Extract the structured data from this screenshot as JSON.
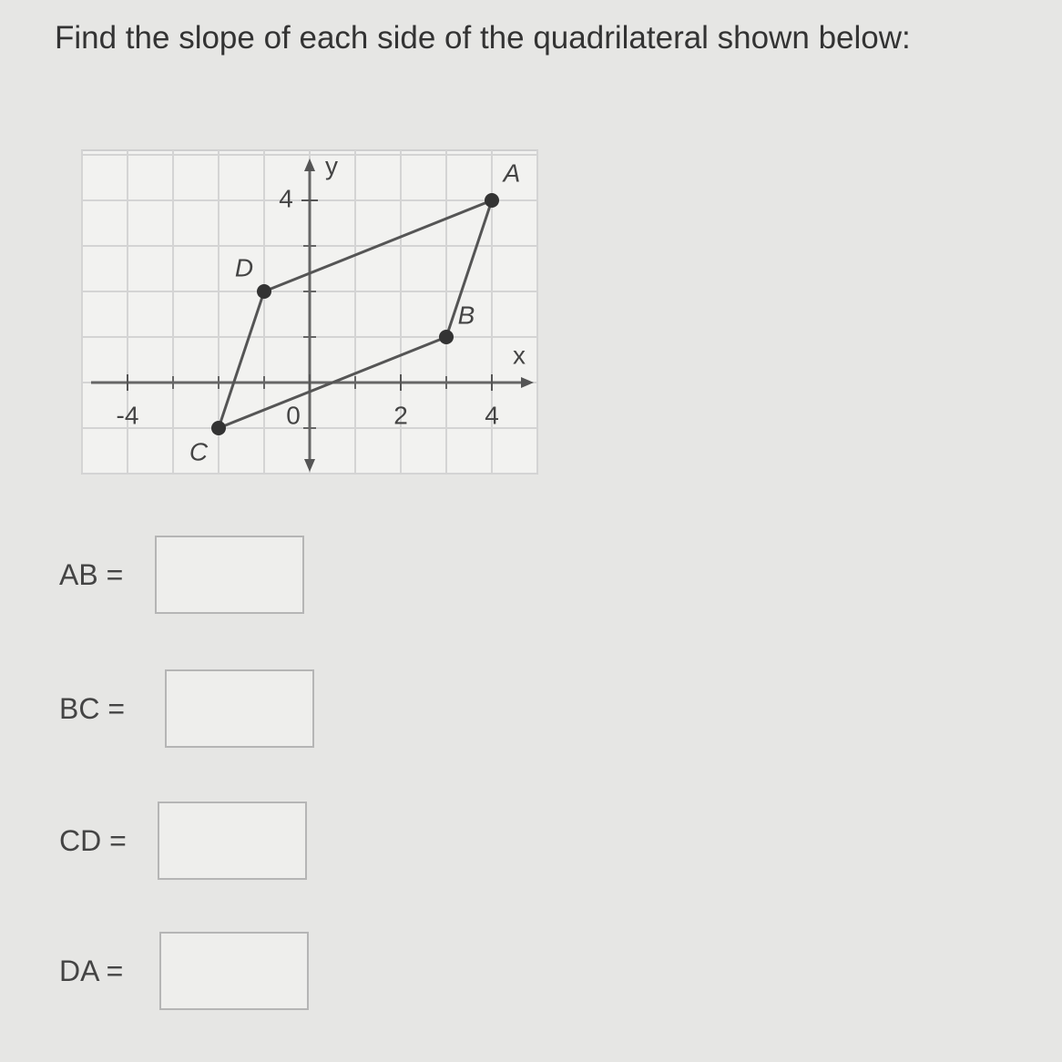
{
  "question": "Find the slope of each side of the quadrilateral shown below:",
  "graph": {
    "x_label": "x",
    "y_label": "y",
    "xlim": [
      -5,
      5
    ],
    "ylim": [
      -2,
      5
    ],
    "xticks": [
      -4,
      0,
      2,
      4
    ],
    "yticks": [
      4
    ],
    "points": [
      {
        "label": "A",
        "x": 4,
        "y": 4
      },
      {
        "label": "B",
        "x": 3,
        "y": 1
      },
      {
        "label": "C",
        "x": -2,
        "y": -1
      },
      {
        "label": "D",
        "x": -1,
        "y": 2
      }
    ]
  },
  "answers": [
    {
      "label": "AB ="
    },
    {
      "label": "BC ="
    },
    {
      "label": "CD ="
    },
    {
      "label": "DA ="
    }
  ]
}
